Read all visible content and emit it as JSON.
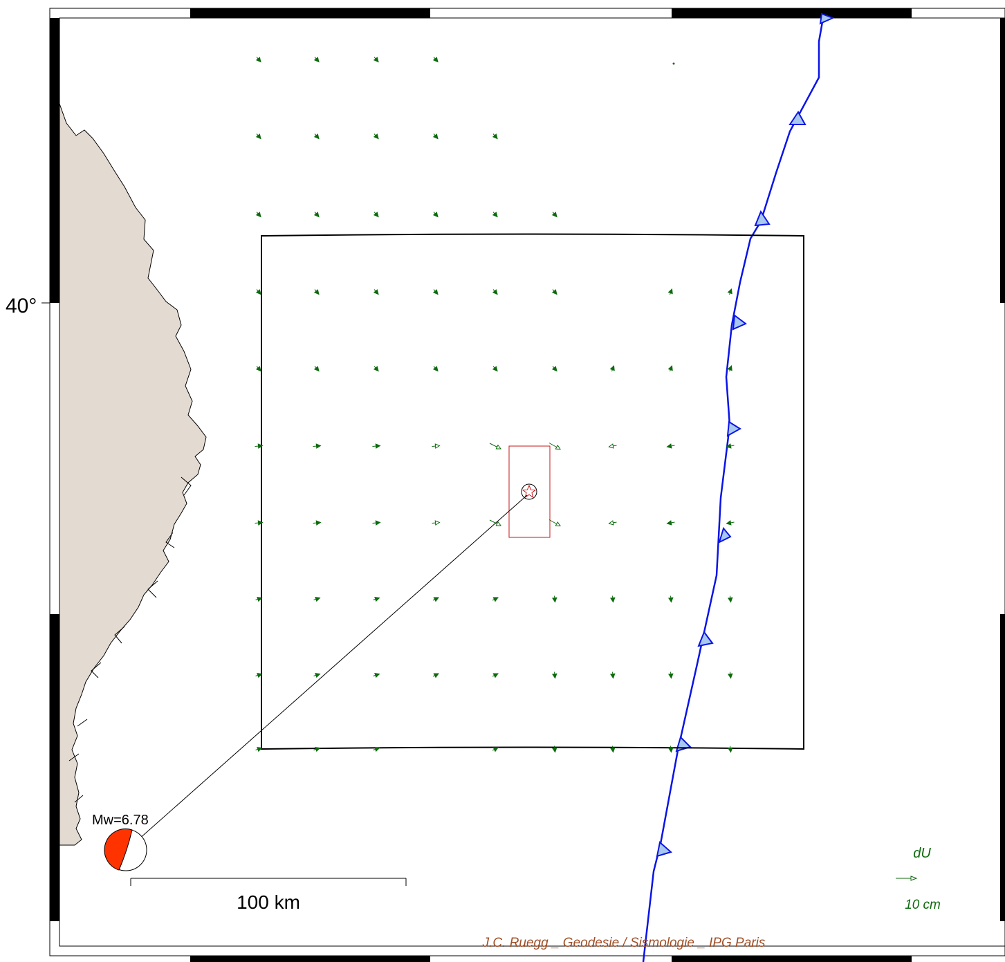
{
  "map": {
    "lat_label": "40°",
    "magnitude_label": "Mw=6.78",
    "scale_bar_label": "100 km",
    "vector_legend_title": "dU",
    "vector_legend_value": "10 cm",
    "credit": "J.C. Ruegg _ Geodesie / Sismologie _ IPG Paris"
  },
  "colors": {
    "land": "#e3dbd2",
    "vectors": "#0d6b0d",
    "trench": "#0a14e6",
    "trench_teeth": "#a8c8f0",
    "fault_plane": "#c81414",
    "beachball": "#ff3300",
    "credit_text": "#a05028"
  },
  "icons": {
    "epicenter": "star-icon",
    "beachball": "focal-mechanism-icon",
    "vector": "arrow-icon"
  }
}
